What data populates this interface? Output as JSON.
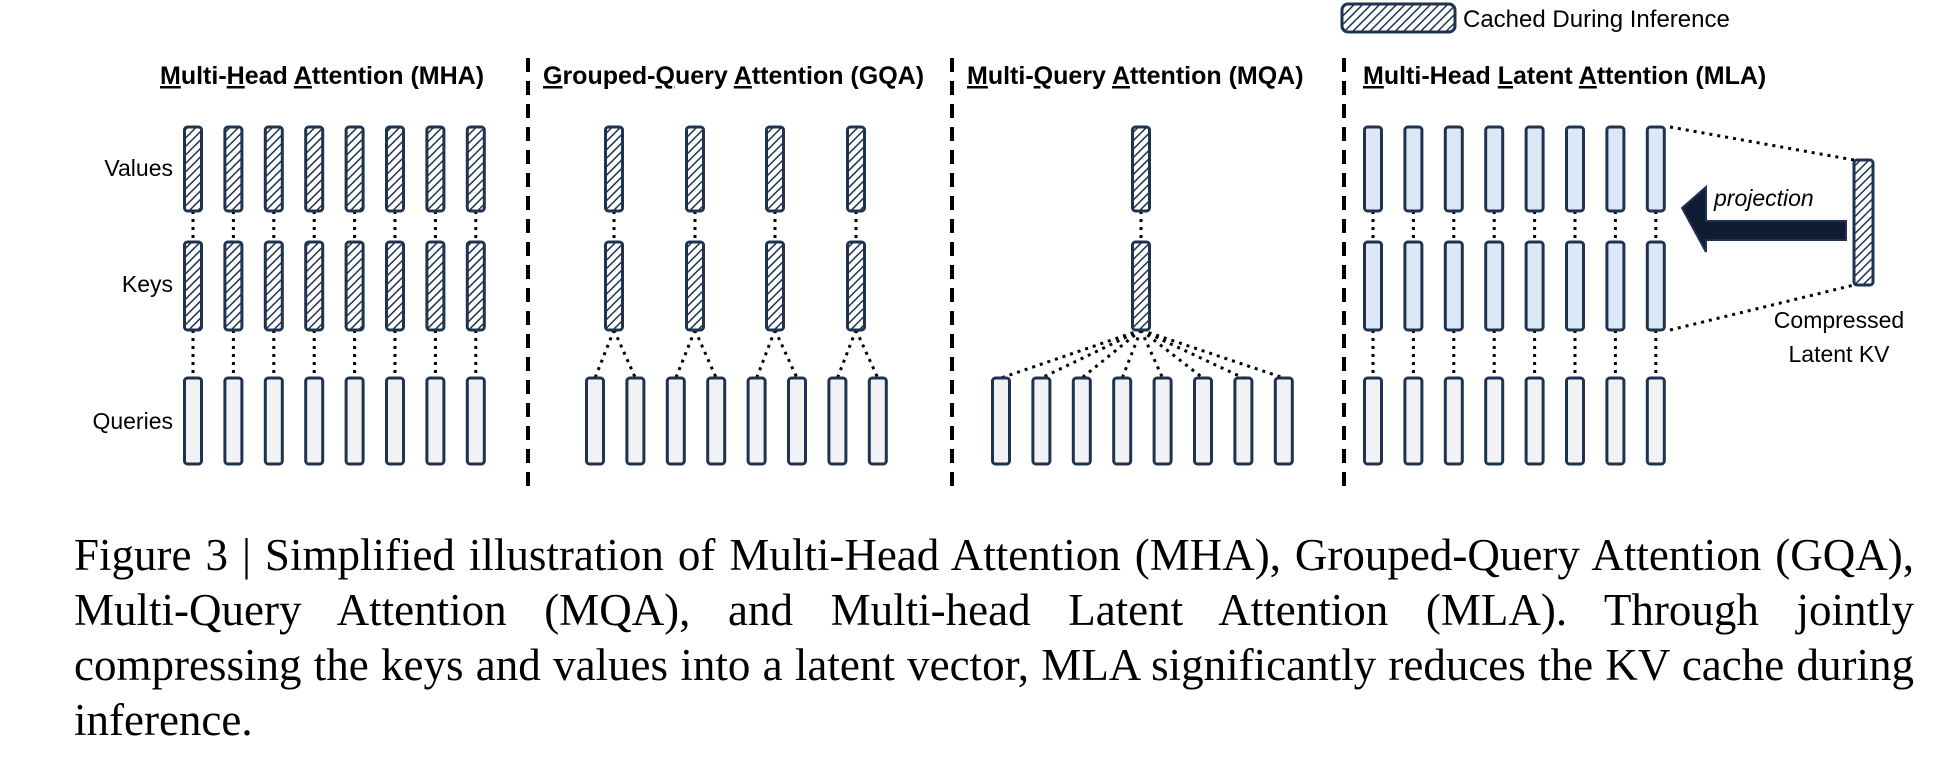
{
  "legend": {
    "label": "Cached During Inference"
  },
  "row_labels": {
    "values": "Values",
    "keys": "Keys",
    "queries": "Queries"
  },
  "panels": [
    {
      "id": "mha",
      "first": "M",
      "rest": "ulti-",
      "first2": "H",
      "rest2": "ead ",
      "first3": "A",
      "rest3": "ttention (MHA)"
    },
    {
      "id": "gqa",
      "first": "G",
      "rest": "rouped-",
      "first2": "Q",
      "rest2": "uery ",
      "first3": "A",
      "rest3": "ttention (GQA)"
    },
    {
      "id": "mqa",
      "first": "M",
      "rest": "ulti-",
      "first2": "Q",
      "rest2": "uery ",
      "first3": "A",
      "rest3": "ttention (MQA)"
    },
    {
      "id": "mla",
      "first": "M",
      "rest": "ulti-Head ",
      "first2": "L",
      "rest2": "atent ",
      "first3": "A",
      "rest3": "ttention (MLA)"
    }
  ],
  "annotations": {
    "projection": "projection",
    "latent_line1": "Compressed",
    "latent_line2": "Latent KV"
  },
  "caption": "Figure 3 | Simplified illustration of Multi-Head Attention (MHA), Grouped-Query Attention (GQA), Multi-Query Attention (MQA), and Multi-head Latent Attention (MLA). Through jointly compressing the keys and values into a latent vector, MLA significantly reduces the KV cache during inference.",
  "colors": {
    "stroke": "#1f3350",
    "query_fill": "#f2f2f4",
    "mla_fill": "#dde8f6",
    "hatch": "#1f3350"
  }
}
